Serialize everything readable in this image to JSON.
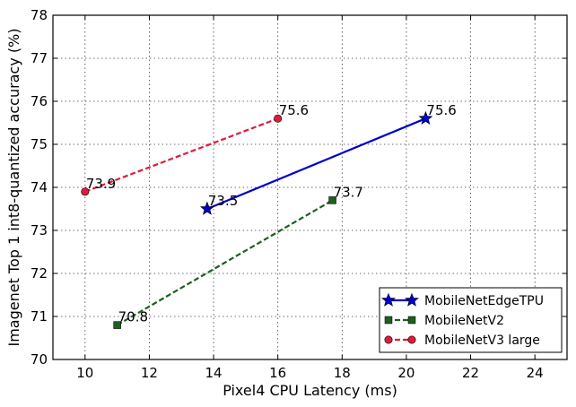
{
  "chart_data": {
    "type": "line",
    "title": "",
    "xlabel": "Pixel4 CPU Latency (ms)",
    "ylabel": "Imagenet Top 1 int8-quantized accuracy (%)",
    "xlim": [
      9,
      25
    ],
    "ylim": [
      70,
      78
    ],
    "xticks": [
      10,
      12,
      14,
      16,
      18,
      20,
      22,
      24
    ],
    "yticks": [
      70,
      71,
      72,
      73,
      74,
      75,
      76,
      77,
      78
    ],
    "grid": true,
    "legend_position": "bottom-right",
    "series": [
      {
        "name": "MobileNetEdgeTPU",
        "color": "#0000cc",
        "line_style": "solid",
        "marker": "star",
        "x": [
          13.8,
          20.6
        ],
        "y": [
          73.5,
          75.6
        ],
        "labels": [
          "73.5",
          "75.6"
        ]
      },
      {
        "name": "MobileNetV2",
        "color": "#1e5e1e",
        "line_style": "dashed",
        "marker": "square",
        "x": [
          11.0,
          17.7
        ],
        "y": [
          70.8,
          73.7
        ],
        "labels": [
          "70.8",
          "73.7"
        ]
      },
      {
        "name": "MobileNetV3 large",
        "color": "#dd1c3c",
        "line_style": "dashed",
        "marker": "circle",
        "x": [
          10.0,
          16.0
        ],
        "y": [
          73.9,
          75.6
        ],
        "labels": [
          "73.9",
          "75.6"
        ]
      }
    ]
  }
}
